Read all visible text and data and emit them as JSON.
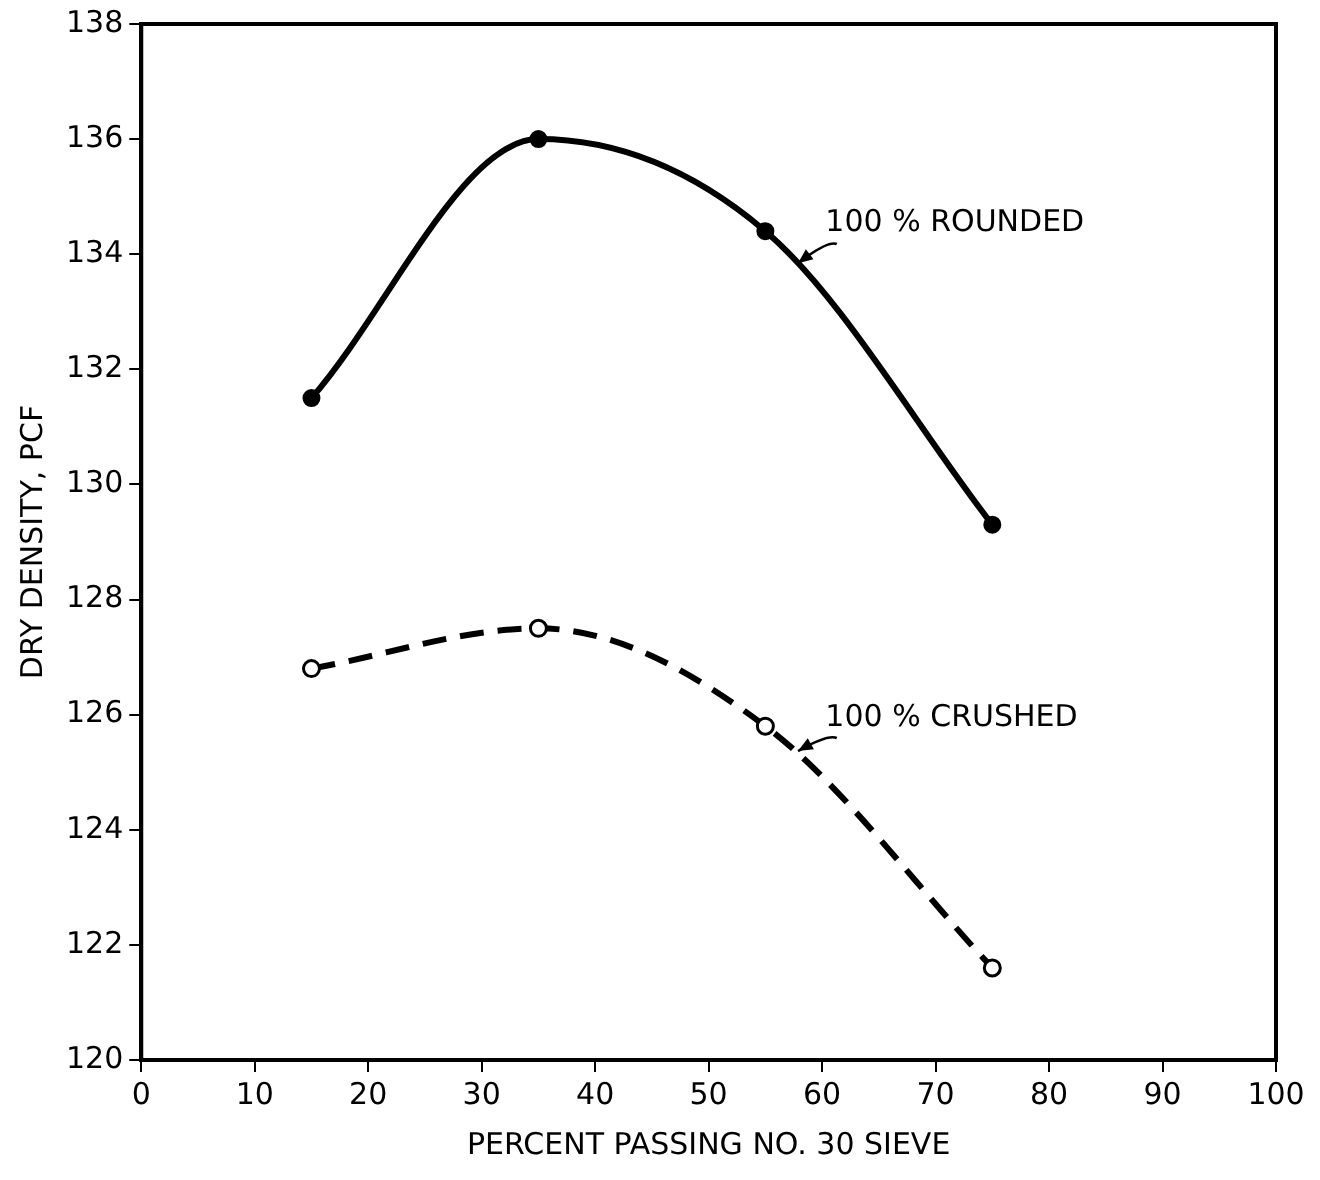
{
  "chart_data": {
    "type": "line",
    "xlabel": "PERCENT PASSING NO. 30 SIEVE",
    "ylabel": "DRY DENSITY, PCF",
    "x": [
      15,
      35,
      55,
      75
    ],
    "series": [
      {
        "name": "100 % ROUNDED",
        "color": "#000000",
        "values": [
          131.5,
          136,
          134.4,
          129.3
        ],
        "line_style": "solid"
      },
      {
        "name": "100 % CRUSHED",
        "color": "#000000",
        "values": [
          126.8,
          127.5,
          125.8,
          121.6
        ],
        "line_style": "dashed"
      }
    ],
    "xlim": [
      0,
      100
    ],
    "xticks": [
      0,
      10,
      20,
      30,
      40,
      50,
      60,
      70,
      80,
      90,
      100
    ],
    "ylim": [
      120,
      138
    ],
    "yticks": [
      120,
      122,
      124,
      126,
      128,
      130,
      132,
      134,
      136,
      138
    ],
    "grid": false,
    "legend": false,
    "marker": "circle"
  }
}
